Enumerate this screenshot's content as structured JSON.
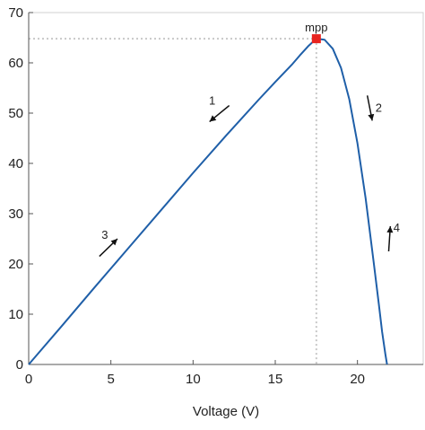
{
  "chart_data": {
    "type": "line",
    "title": "",
    "xlabel": "Voltage (V)",
    "ylabel": "",
    "xlim": [
      0,
      24
    ],
    "ylim": [
      0,
      70
    ],
    "x_ticks": [
      "0",
      "5",
      "10",
      "15",
      "20"
    ],
    "y_ticks": [
      "0",
      "10",
      "20",
      "30",
      "40",
      "50",
      "60",
      "70"
    ],
    "grid": false,
    "series": [
      {
        "color": "#1f5fa8",
        "x": [
          0,
          2,
          4,
          6,
          8,
          10,
          12,
          14,
          15,
          16,
          16.5,
          17,
          17.5,
          18,
          18.5,
          19,
          19.5,
          20,
          20.5,
          21,
          21.3,
          21.5,
          21.7,
          21.8
        ],
        "y": [
          0,
          7.6,
          15.3,
          22.9,
          30.5,
          38.1,
          45.5,
          52.7,
          56.2,
          59.6,
          61.5,
          63.3,
          64.8,
          64.6,
          62.8,
          59.0,
          52.8,
          44.0,
          33.0,
          20.0,
          12.0,
          6.5,
          2.0,
          0
        ]
      }
    ],
    "mpp": {
      "label": "mpp",
      "x": 17.5,
      "y": 64.8,
      "color": "#e8231f"
    },
    "arrows": [
      {
        "label": "1",
        "x_from": 12.2,
        "y_from": 51.5,
        "x_to": 11.0,
        "y_to": 48.3
      },
      {
        "label": "2",
        "x_from": 20.6,
        "y_from": 53.5,
        "x_to": 20.9,
        "y_to": 48.5
      },
      {
        "label": "3",
        "x_from": 4.3,
        "y_from": 21.5,
        "x_to": 5.4,
        "y_to": 25.0
      },
      {
        "label": "4",
        "x_from": 21.9,
        "y_from": 22.5,
        "x_to": 22.0,
        "y_to": 27.5
      }
    ]
  }
}
